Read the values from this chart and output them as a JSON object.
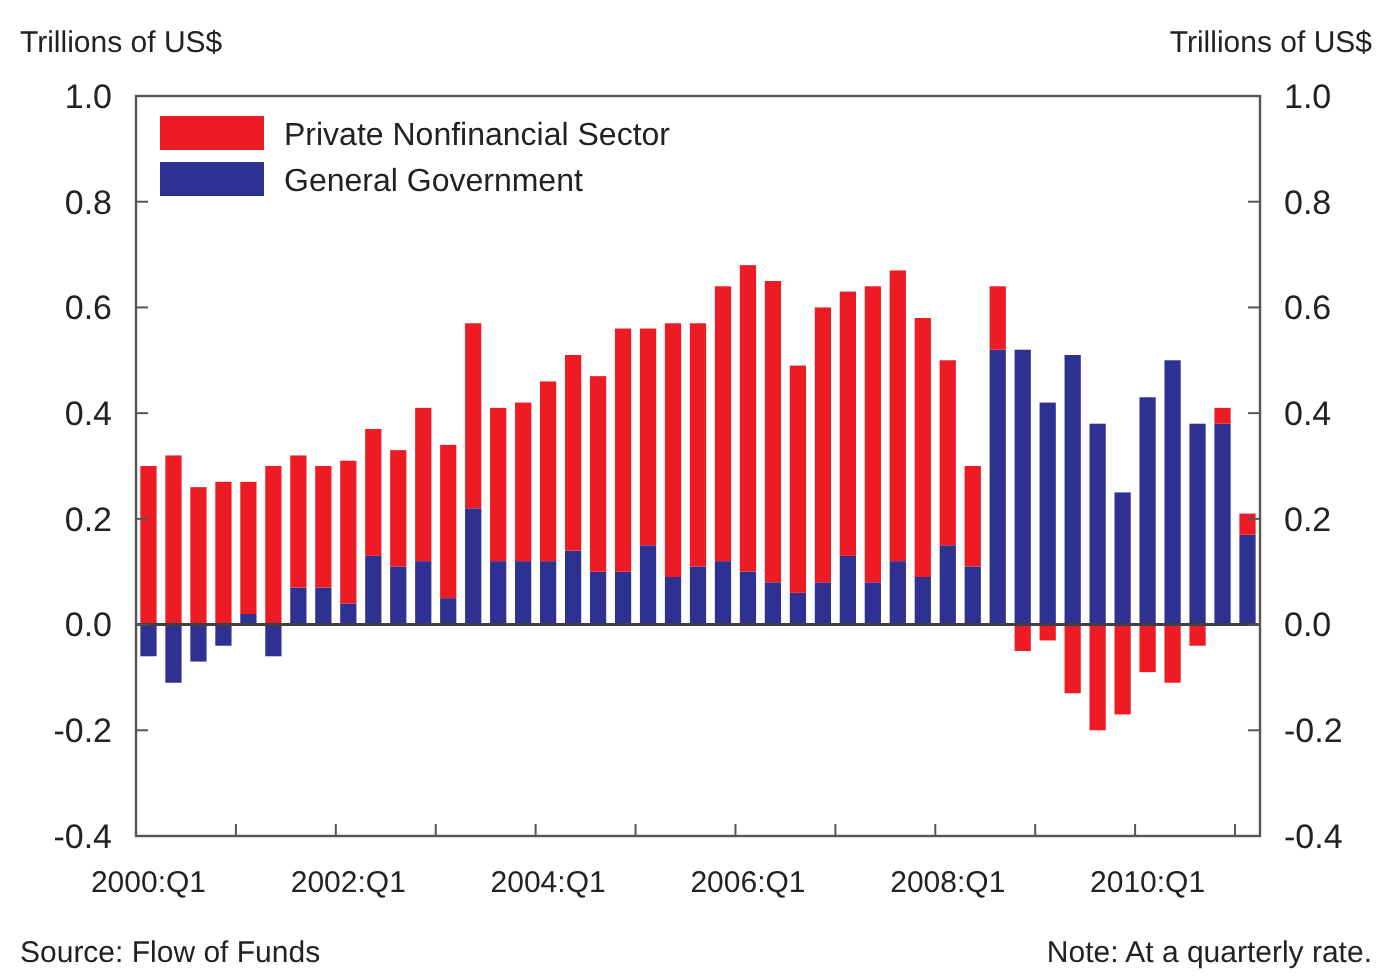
{
  "chart_data": {
    "type": "bar",
    "stacked": true,
    "ylabel": "Trillions of US$",
    "y2label": "Trillions of US$",
    "categories": [
      "2000:Q1",
      null,
      null,
      null,
      null,
      null,
      null,
      null,
      "2002:Q1",
      null,
      null,
      null,
      null,
      null,
      null,
      null,
      "2004:Q1",
      null,
      null,
      null,
      null,
      null,
      null,
      null,
      "2006:Q1",
      null,
      null,
      null,
      null,
      null,
      null,
      null,
      "2008:Q1",
      null,
      null,
      null,
      null,
      null,
      null,
      null,
      "2010:Q1",
      null,
      null,
      null,
      null
    ],
    "series": [
      {
        "name": "General Government",
        "color": "#2e3192",
        "values": [
          -0.06,
          -0.11,
          -0.07,
          -0.04,
          0.02,
          -0.06,
          0.07,
          0.07,
          0.04,
          0.13,
          0.11,
          0.12,
          0.05,
          0.22,
          0.12,
          0.12,
          0.12,
          0.14,
          0.1,
          0.1,
          0.15,
          0.09,
          0.11,
          0.12,
          0.1,
          0.08,
          0.06,
          0.08,
          0.13,
          0.08,
          0.12,
          0.09,
          0.15,
          0.11,
          0.52,
          0.52,
          0.42,
          0.51,
          0.38,
          0.25,
          0.43,
          0.5,
          0.38,
          0.38,
          0.17
        ]
      },
      {
        "name": "Private Nonfinancial Sector",
        "color": "#ed1c24",
        "values": [
          0.3,
          0.32,
          0.26,
          0.27,
          0.25,
          0.3,
          0.25,
          0.23,
          0.27,
          0.24,
          0.22,
          0.29,
          0.29,
          0.35,
          0.29,
          0.3,
          0.34,
          0.37,
          0.37,
          0.46,
          0.41,
          0.48,
          0.46,
          0.52,
          0.58,
          0.57,
          0.43,
          0.52,
          0.5,
          0.56,
          0.55,
          0.49,
          0.35,
          0.19,
          0.12,
          -0.05,
          -0.03,
          -0.13,
          -0.2,
          -0.17,
          -0.09,
          -0.11,
          -0.04,
          0.03,
          0.04
        ]
      }
    ],
    "ylim": [
      -0.4,
      1.0
    ],
    "yticks": [
      {
        "value": -0.4,
        "label": "-0.4"
      },
      {
        "value": -0.2,
        "label": "-0.2"
      },
      {
        "value": 0,
        "label": "0.0"
      },
      {
        "value": 0.2,
        "label": "0.2"
      },
      {
        "value": 0.4,
        "label": "0.4"
      },
      {
        "value": 0.6,
        "label": "0.6"
      },
      {
        "value": 0.8,
        "label": "0.8"
      },
      {
        "value": 1.0,
        "label": "1.0"
      }
    ],
    "y2lim": [
      -0.4,
      1.0
    ],
    "y2ticks": [
      {
        "value": -0.4,
        "label": "-0.4"
      },
      {
        "value": -0.2,
        "label": "-0.2"
      },
      {
        "value": 0,
        "label": "0.0"
      },
      {
        "value": 0.2,
        "label": "0.2"
      },
      {
        "value": 0.4,
        "label": "0.4"
      },
      {
        "value": 0.6,
        "label": "0.6"
      },
      {
        "value": 0.8,
        "label": "0.8"
      },
      {
        "value": 1.0,
        "label": "1.0"
      }
    ],
    "ref_lines": [
      {
        "axis": "y",
        "value": 0,
        "color": "#404040"
      }
    ],
    "legend": "top left",
    "grid": false,
    "annotations": [
      "Source: Flow of Funds",
      "Note: At a quarterly rate."
    ]
  }
}
